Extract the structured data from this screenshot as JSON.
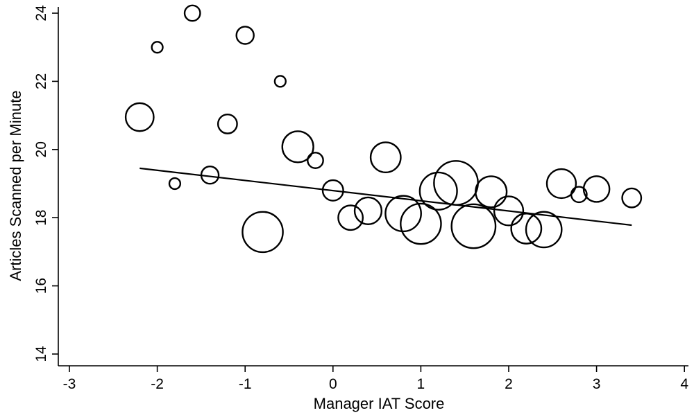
{
  "chart_data": {
    "type": "scatter",
    "xlabel": "Manager IAT Score",
    "ylabel": "Articles Scanned per Minute",
    "xlim": [
      -3,
      4
    ],
    "ylim": [
      14,
      24
    ],
    "x_ticks": [
      -3,
      -2,
      -1,
      0,
      1,
      2,
      3,
      4
    ],
    "y_ticks": [
      14,
      16,
      18,
      20,
      22,
      24
    ],
    "grid": false,
    "legend": "none",
    "points": [
      {
        "x": -2.2,
        "y": 20.95,
        "weight": 13
      },
      {
        "x": -2.0,
        "y": 23.0,
        "weight": 2
      },
      {
        "x": -1.8,
        "y": 19.0,
        "weight": 2
      },
      {
        "x": -1.6,
        "y": 24.0,
        "weight": 4
      },
      {
        "x": -1.4,
        "y": 19.25,
        "weight": 5
      },
      {
        "x": -1.2,
        "y": 20.75,
        "weight": 6
      },
      {
        "x": -1.0,
        "y": 23.35,
        "weight": 5
      },
      {
        "x": -0.8,
        "y": 17.58,
        "weight": 27
      },
      {
        "x": -0.6,
        "y": 22.0,
        "weight": 2
      },
      {
        "x": -0.4,
        "y": 20.08,
        "weight": 16
      },
      {
        "x": -0.2,
        "y": 19.68,
        "weight": 4
      },
      {
        "x": 0.0,
        "y": 18.8,
        "weight": 7
      },
      {
        "x": 0.2,
        "y": 18.0,
        "weight": 10
      },
      {
        "x": 0.4,
        "y": 18.2,
        "weight": 12
      },
      {
        "x": 0.6,
        "y": 19.77,
        "weight": 15
      },
      {
        "x": 0.8,
        "y": 18.12,
        "weight": 21
      },
      {
        "x": 1.0,
        "y": 17.82,
        "weight": 27
      },
      {
        "x": 1.2,
        "y": 18.78,
        "weight": 23
      },
      {
        "x": 1.4,
        "y": 19.02,
        "weight": 32
      },
      {
        "x": 1.6,
        "y": 17.75,
        "weight": 32
      },
      {
        "x": 1.8,
        "y": 18.76,
        "weight": 16
      },
      {
        "x": 2.0,
        "y": 18.2,
        "weight": 14
      },
      {
        "x": 2.2,
        "y": 17.68,
        "weight": 15
      },
      {
        "x": 2.4,
        "y": 17.65,
        "weight": 21
      },
      {
        "x": 2.6,
        "y": 19.0,
        "weight": 14
      },
      {
        "x": 2.8,
        "y": 18.68,
        "weight": 4
      },
      {
        "x": 3.0,
        "y": 18.84,
        "weight": 11
      },
      {
        "x": 3.4,
        "y": 18.58,
        "weight": 6
      }
    ],
    "fit_line": {
      "x": [
        -2.2,
        3.4
      ],
      "y": [
        19.45,
        17.78
      ]
    }
  }
}
